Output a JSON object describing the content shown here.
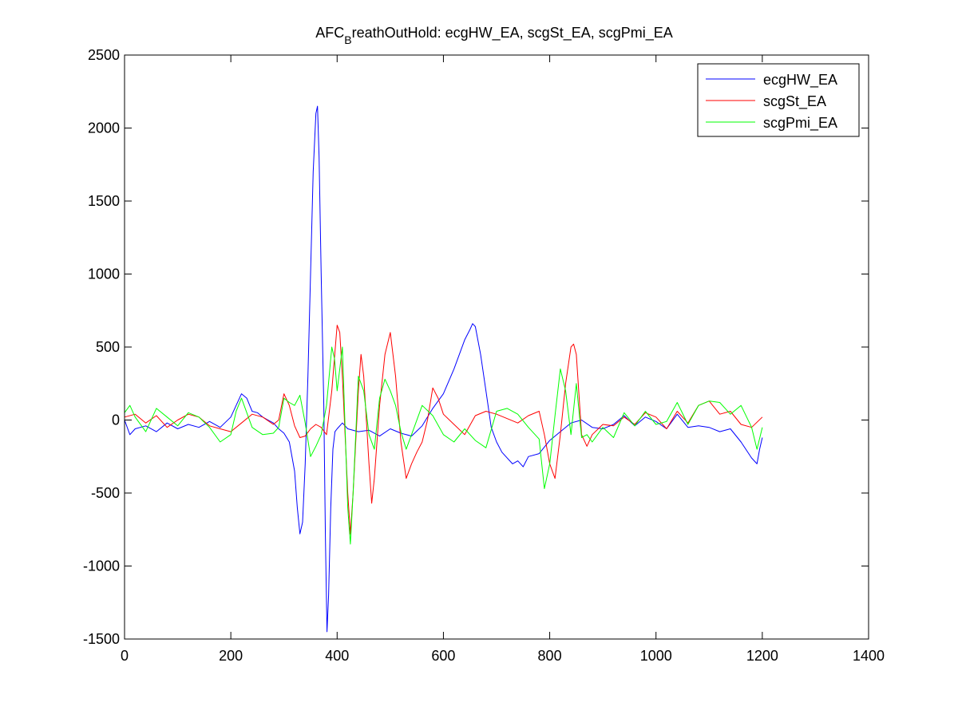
{
  "chart_data": {
    "type": "line",
    "title": {
      "main": "AFC",
      "subscript": "B",
      "rest": "reathOutHold: ecgHW_EA, scgSt_EA, scgPmi_EA"
    },
    "xlabel": "",
    "ylabel": "",
    "xlim": [
      0,
      1400
    ],
    "ylim": [
      -1500,
      2500
    ],
    "xticks": [
      0,
      200,
      400,
      600,
      800,
      1000,
      1200,
      1400
    ],
    "yticks": [
      -1500,
      -1000,
      -500,
      0,
      500,
      1000,
      1500,
      2000,
      2500
    ],
    "xtick_labels": [
      "0",
      "200",
      "400",
      "600",
      "800",
      "1000",
      "1200",
      "1400"
    ],
    "ytick_labels": [
      "-1500",
      "-1000",
      "-500",
      "0",
      "500",
      "1000",
      "1500",
      "2000",
      "2500"
    ],
    "grid": false,
    "legend_position": "top-right",
    "series": [
      {
        "name": "ecgHW_EA",
        "color": "#0000ff",
        "x": [
          0,
          10,
          20,
          40,
          60,
          80,
          100,
          120,
          140,
          160,
          180,
          200,
          210,
          220,
          230,
          240,
          250,
          260,
          270,
          280,
          290,
          300,
          310,
          320,
          325,
          330,
          335,
          340,
          345,
          350,
          355,
          360,
          363,
          366,
          370,
          375,
          378,
          381,
          384,
          388,
          392,
          396,
          400,
          410,
          420,
          440,
          460,
          480,
          500,
          520,
          540,
          560,
          580,
          600,
          620,
          640,
          650,
          655,
          660,
          670,
          680,
          690,
          700,
          710,
          720,
          730,
          740,
          750,
          760,
          780,
          800,
          820,
          840,
          860,
          880,
          900,
          920,
          940,
          960,
          980,
          1000,
          1020,
          1040,
          1060,
          1080,
          1100,
          1120,
          1140,
          1160,
          1180,
          1190,
          1195,
          1200
        ],
        "values": [
          0,
          -100,
          -60,
          -40,
          -80,
          -20,
          -60,
          -30,
          -50,
          -10,
          -50,
          20,
          100,
          180,
          150,
          60,
          50,
          20,
          0,
          -20,
          -60,
          -90,
          -150,
          -350,
          -600,
          -780,
          -700,
          -300,
          300,
          1000,
          1700,
          2100,
          2150,
          1800,
          1000,
          100,
          -800,
          -1450,
          -1200,
          -600,
          -200,
          -80,
          -60,
          -20,
          -60,
          -80,
          -70,
          -110,
          -60,
          -90,
          -110,
          -40,
          80,
          180,
          350,
          550,
          620,
          660,
          640,
          450,
          200,
          -50,
          -150,
          -220,
          -260,
          -300,
          -280,
          -320,
          -250,
          -230,
          -140,
          -80,
          -20,
          0,
          -50,
          -60,
          -30,
          30,
          -40,
          20,
          -10,
          -60,
          40,
          -50,
          -40,
          -50,
          -80,
          -60,
          -150,
          -260,
          -300,
          -200,
          -120
        ]
      },
      {
        "name": "scgSt_EA",
        "color": "#ff0000",
        "x": [
          0,
          20,
          40,
          60,
          80,
          100,
          120,
          140,
          160,
          180,
          200,
          220,
          240,
          260,
          280,
          290,
          300,
          310,
          320,
          330,
          340,
          350,
          360,
          370,
          380,
          390,
          400,
          405,
          410,
          420,
          425,
          430,
          440,
          445,
          450,
          460,
          465,
          470,
          480,
          490,
          500,
          510,
          520,
          530,
          540,
          550,
          560,
          570,
          580,
          590,
          600,
          620,
          640,
          660,
          680,
          700,
          720,
          740,
          760,
          780,
          790,
          800,
          810,
          820,
          830,
          840,
          845,
          850,
          860,
          870,
          880,
          900,
          920,
          940,
          960,
          980,
          1000,
          1020,
          1040,
          1060,
          1080,
          1100,
          1120,
          1140,
          1160,
          1180,
          1200
        ],
        "values": [
          20,
          40,
          -20,
          30,
          -50,
          0,
          40,
          20,
          -40,
          -60,
          -80,
          -20,
          40,
          20,
          -30,
          0,
          180,
          100,
          -40,
          -120,
          -110,
          -60,
          -30,
          -50,
          -100,
          200,
          650,
          600,
          300,
          -500,
          -780,
          -500,
          200,
          450,
          300,
          -300,
          -570,
          -400,
          100,
          450,
          600,
          300,
          -150,
          -400,
          -300,
          -220,
          -150,
          0,
          220,
          150,
          40,
          -30,
          -100,
          30,
          60,
          40,
          10,
          -20,
          30,
          60,
          -100,
          -300,
          -400,
          -100,
          250,
          500,
          520,
          450,
          -100,
          -180,
          -100,
          -30,
          -40,
          20,
          -30,
          50,
          20,
          -60,
          60,
          -20,
          100,
          130,
          40,
          60,
          -30,
          -50,
          20
        ]
      },
      {
        "name": "scgPmi_EA",
        "color": "#00ff00",
        "x": [
          0,
          10,
          20,
          40,
          60,
          80,
          100,
          120,
          140,
          160,
          180,
          200,
          210,
          220,
          240,
          260,
          280,
          290,
          300,
          310,
          320,
          330,
          340,
          350,
          360,
          370,
          380,
          390,
          395,
          400,
          410,
          420,
          425,
          430,
          440,
          450,
          460,
          470,
          480,
          490,
          500,
          510,
          520,
          530,
          540,
          560,
          580,
          600,
          620,
          640,
          660,
          680,
          700,
          720,
          740,
          760,
          780,
          790,
          800,
          810,
          820,
          830,
          840,
          850,
          860,
          870,
          880,
          900,
          920,
          940,
          960,
          980,
          1000,
          1020,
          1040,
          1060,
          1080,
          1100,
          1120,
          1140,
          1160,
          1180,
          1190,
          1200
        ],
        "values": [
          50,
          100,
          20,
          -80,
          80,
          20,
          -40,
          50,
          20,
          -50,
          -150,
          -100,
          60,
          150,
          -50,
          -100,
          -90,
          -50,
          150,
          120,
          100,
          170,
          -20,
          -250,
          -180,
          -100,
          100,
          500,
          420,
          200,
          500,
          -600,
          -850,
          -500,
          300,
          200,
          -100,
          -200,
          150,
          280,
          200,
          100,
          -80,
          -200,
          -100,
          100,
          30,
          -100,
          -150,
          -60,
          -140,
          -190,
          60,
          80,
          40,
          -50,
          -130,
          -470,
          -300,
          30,
          350,
          200,
          -100,
          250,
          -120,
          -100,
          -150,
          -50,
          -120,
          50,
          -40,
          60,
          -30,
          -10,
          120,
          -30,
          100,
          130,
          120,
          40,
          100,
          -50,
          -200,
          -50
        ]
      }
    ]
  }
}
